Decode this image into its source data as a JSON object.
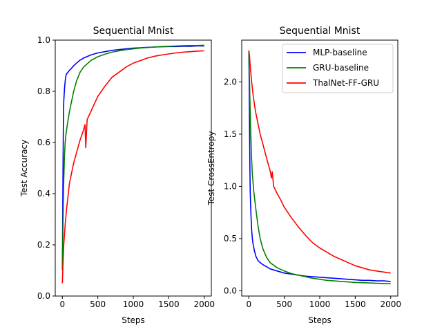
{
  "chart_data": [
    {
      "type": "line",
      "title": "Sequential Mnist",
      "xlabel": "Steps",
      "ylabel": "Test Accuracy",
      "xlim": [
        -100,
        2100
      ],
      "ylim": [
        0.0,
        1.0
      ],
      "xticks": [
        0,
        500,
        1000,
        1500,
        2000
      ],
      "yticks": [
        0.0,
        0.2,
        0.4,
        0.6,
        0.8,
        1.0
      ],
      "xtick_labels": [
        "0",
        "500",
        "1000",
        "1500",
        "2000"
      ],
      "ytick_labels": [
        "0.0",
        "0.2",
        "0.4",
        "0.6",
        "0.8",
        "1.0"
      ],
      "grid": false,
      "legend": "none",
      "series": [
        {
          "color": "#0000ff",
          "x": [
            0,
            5,
            10,
            15,
            20,
            30,
            40,
            50,
            60,
            80,
            100,
            130,
            160,
            200,
            250,
            300,
            400,
            500,
            600,
            700,
            800,
            900,
            1000,
            1100,
            1200,
            1300,
            1400,
            1500,
            1600,
            1700,
            1800,
            1900,
            2000
          ],
          "y": [
            0.1,
            0.3,
            0.52,
            0.68,
            0.76,
            0.81,
            0.84,
            0.86,
            0.868,
            0.875,
            0.882,
            0.89,
            0.9,
            0.91,
            0.922,
            0.93,
            0.942,
            0.95,
            0.955,
            0.96,
            0.963,
            0.966,
            0.969,
            0.97,
            0.972,
            0.973,
            0.974,
            0.975,
            0.975,
            0.976,
            0.976,
            0.977,
            0.977
          ]
        },
        {
          "color": "#008000",
          "x": [
            0,
            10,
            20,
            30,
            40,
            50,
            70,
            100,
            130,
            160,
            200,
            250,
            300,
            400,
            500,
            600,
            700,
            800,
            900,
            1000,
            1100,
            1200,
            1300,
            1400,
            1500,
            1600,
            1700,
            1800,
            1900,
            2000
          ],
          "y": [
            0.1,
            0.3,
            0.45,
            0.55,
            0.6,
            0.63,
            0.67,
            0.72,
            0.76,
            0.8,
            0.84,
            0.875,
            0.895,
            0.92,
            0.935,
            0.945,
            0.953,
            0.958,
            0.963,
            0.966,
            0.969,
            0.971,
            0.973,
            0.975,
            0.976,
            0.977,
            0.978,
            0.979,
            0.979,
            0.98
          ]
        },
        {
          "color": "#ff0000",
          "x": [
            0,
            10,
            20,
            30,
            40,
            60,
            80,
            100,
            130,
            160,
            200,
            250,
            300,
            320,
            330,
            350,
            400,
            450,
            500,
            600,
            700,
            800,
            900,
            1000,
            1100,
            1200,
            1300,
            1400,
            1500,
            1600,
            1700,
            1800,
            1900,
            2000
          ],
          "y": [
            0.05,
            0.13,
            0.2,
            0.24,
            0.28,
            0.34,
            0.39,
            0.44,
            0.48,
            0.52,
            0.56,
            0.61,
            0.65,
            0.67,
            0.58,
            0.69,
            0.72,
            0.75,
            0.78,
            0.82,
            0.855,
            0.875,
            0.895,
            0.91,
            0.92,
            0.93,
            0.937,
            0.942,
            0.946,
            0.95,
            0.953,
            0.955,
            0.957,
            0.958
          ]
        }
      ]
    },
    {
      "type": "line",
      "title": "Sequential Mnist",
      "xlabel": "Steps",
      "ylabel": "Test CrossEntropy",
      "xlim": [
        -100,
        2100
      ],
      "ylim": [
        -0.05,
        2.4
      ],
      "xticks": [
        0,
        500,
        1000,
        1500,
        2000
      ],
      "yticks": [
        0.0,
        0.5,
        1.0,
        1.5,
        2.0
      ],
      "xtick_labels": [
        "0",
        "500",
        "1000",
        "1500",
        "2000"
      ],
      "ytick_labels": [
        "0.0",
        "0.5",
        "1.0",
        "1.5",
        "2.0"
      ],
      "grid": false,
      "legend": "top-right",
      "series": [
        {
          "name": "MLP-baseline",
          "color": "#0000ff",
          "x": [
            0,
            5,
            10,
            15,
            20,
            30,
            40,
            50,
            60,
            80,
            100,
            130,
            160,
            200,
            250,
            300,
            400,
            500,
            600,
            700,
            800,
            900,
            1000,
            1100,
            1200,
            1300,
            1400,
            1500,
            1600,
            1700,
            1800,
            1900,
            2000
          ],
          "y": [
            2.3,
            2.0,
            1.6,
            1.2,
            0.95,
            0.72,
            0.58,
            0.5,
            0.45,
            0.38,
            0.33,
            0.29,
            0.27,
            0.25,
            0.23,
            0.21,
            0.19,
            0.17,
            0.16,
            0.15,
            0.14,
            0.135,
            0.13,
            0.125,
            0.12,
            0.115,
            0.11,
            0.105,
            0.1,
            0.1,
            0.095,
            0.095,
            0.09
          ]
        },
        {
          "name": "GRU-baseline",
          "color": "#008000",
          "x": [
            0,
            10,
            20,
            30,
            40,
            50,
            70,
            100,
            130,
            160,
            200,
            250,
            300,
            400,
            500,
            600,
            700,
            800,
            900,
            1000,
            1100,
            1200,
            1300,
            1400,
            1500,
            1600,
            1700,
            1800,
            1900,
            2000
          ],
          "y": [
            2.3,
            2.0,
            1.7,
            1.45,
            1.25,
            1.12,
            0.95,
            0.78,
            0.62,
            0.5,
            0.4,
            0.32,
            0.27,
            0.22,
            0.19,
            0.165,
            0.15,
            0.135,
            0.12,
            0.11,
            0.1,
            0.095,
            0.09,
            0.085,
            0.08,
            0.078,
            0.075,
            0.072,
            0.07,
            0.068
          ]
        },
        {
          "name": "ThalNet-FF-GRU",
          "color": "#ff0000",
          "x": [
            0,
            10,
            20,
            40,
            60,
            80,
            100,
            130,
            160,
            200,
            250,
            300,
            320,
            330,
            350,
            400,
            450,
            500,
            600,
            700,
            800,
            900,
            1000,
            1100,
            1200,
            1300,
            1400,
            1500,
            1600,
            1700,
            1800,
            1900,
            2000
          ],
          "y": [
            2.3,
            2.25,
            2.15,
            2.0,
            1.88,
            1.78,
            1.7,
            1.6,
            1.5,
            1.4,
            1.27,
            1.15,
            1.08,
            1.14,
            1.0,
            0.93,
            0.87,
            0.8,
            0.7,
            0.61,
            0.53,
            0.46,
            0.41,
            0.37,
            0.33,
            0.3,
            0.27,
            0.24,
            0.22,
            0.2,
            0.19,
            0.18,
            0.17
          ]
        }
      ]
    }
  ]
}
